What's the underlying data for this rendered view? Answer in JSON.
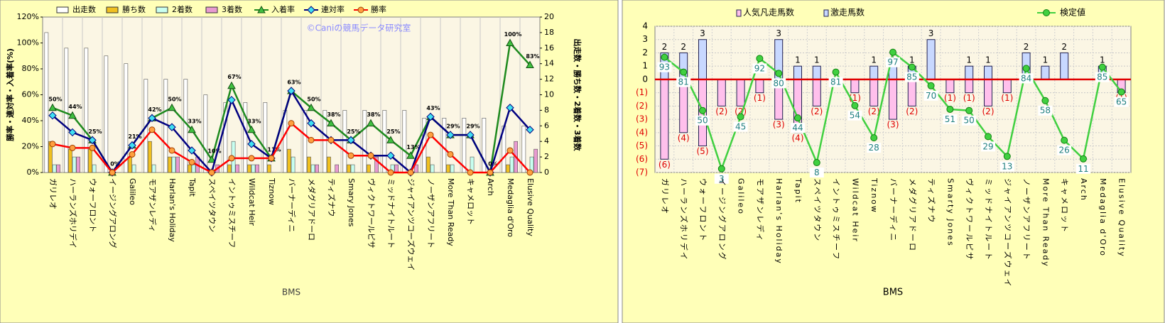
{
  "chart_data": [
    {
      "type": "combo",
      "annotation": "©Caniの競馬データ研究室",
      "xlabel": "BMS",
      "ylabel": "勝率・連対率・入着率(%)",
      "y2label": "出走数・勝ち数・2着数・3着数",
      "categories": [
        "ガリレオ",
        "ハーランズホリデイ",
        "ウォーフロント",
        "イージングアロング",
        "Galileo",
        "モアザンレディ",
        "Harlan's Holiday",
        "Tapit",
        "スペイツタウン",
        "イントゥミスチーフ",
        "Wildcat Heir",
        "Tiznow",
        "バーナーディニ",
        "メダグリアドーロ",
        "ティズナウ",
        "Smary Jones",
        "ヴィクトワールピサ",
        "ミッドナイトルート",
        "ジャイアンツコーズウェイ",
        "ノーザンアフリート",
        "More Than Ready",
        "キャメロット",
        "Arch",
        "Medaglia d'Oro",
        "Elusive Quality"
      ],
      "ylim": [
        0,
        120
      ],
      "yticks": [
        {
          "value": 0,
          "label": "0%"
        },
        {
          "value": 20,
          "label": "20%"
        },
        {
          "value": 40,
          "label": "40%"
        },
        {
          "value": 60,
          "label": "60%"
        },
        {
          "value": 80,
          "label": "80%"
        },
        {
          "value": 100,
          "label": "100%"
        },
        {
          "value": 120,
          "label": "120%"
        }
      ],
      "y2lim": [
        0,
        20
      ],
      "y2ticks": [
        0,
        2,
        4,
        6,
        8,
        10,
        12,
        14,
        16,
        18,
        20
      ],
      "grid": true,
      "legend": "top",
      "series": [
        {
          "name": "出走数",
          "kind": "bar",
          "axis": "y2",
          "color": "#ffffff",
          "values": [
            18,
            16,
            16,
            15,
            14,
            12,
            12,
            12,
            10,
            9,
            9,
            9,
            8,
            8,
            8,
            8,
            8,
            8,
            8,
            7,
            7,
            7,
            7,
            6,
            6
          ]
        },
        {
          "name": "勝ち数",
          "kind": "bar",
          "axis": "y2",
          "color": "#f0c020",
          "values": [
            4,
            3,
            3,
            0,
            2,
            4,
            2,
            1,
            0,
            1,
            1,
            1,
            3,
            2,
            2,
            1,
            1,
            0,
            0,
            2,
            1,
            0,
            0,
            1,
            0
          ]
        },
        {
          "name": "2着数",
          "kind": "bar",
          "axis": "y2",
          "color": "#c8fff0",
          "values": [
            1,
            2,
            1,
            0,
            1,
            1,
            2,
            1,
            0,
            4,
            1,
            0,
            2,
            1,
            0,
            1,
            0,
            1,
            0,
            1,
            1,
            2,
            0,
            2,
            2
          ]
        },
        {
          "name": "3着数",
          "kind": "bar",
          "axis": "y2",
          "color": "#e89ad0",
          "values": [
            1,
            2,
            0,
            0,
            0,
            0,
            2,
            2,
            1,
            1,
            1,
            0,
            0,
            1,
            1,
            0,
            2,
            1,
            1,
            0,
            0,
            0,
            0,
            4,
            3
          ]
        },
        {
          "name": "入着率",
          "kind": "line",
          "marker": "triangle",
          "color": "#1e8a1e",
          "markercolor": "#40c040",
          "values": [
            50,
            44,
            25,
            0,
            21,
            42,
            50,
            33,
            10,
            67,
            33,
            11,
            63,
            50,
            38,
            25,
            38,
            25,
            13,
            43,
            29,
            29,
            0,
            100,
            83
          ],
          "value_labels": [
            "50%",
            "44%",
            "25%",
            "0%",
            "21%",
            "42%",
            "50%",
            "33%",
            "10%",
            "67%",
            "33%",
            "11%",
            "63%",
            "50%",
            "38%",
            "25%",
            "38%",
            "25%",
            "13%",
            "43%",
            "29%",
            "29%",
            "0%",
            "100%",
            "83%"
          ]
        },
        {
          "name": "連対率",
          "kind": "line",
          "marker": "diamond",
          "color": "#000080",
          "markercolor": "#40e0f0",
          "values": [
            44,
            31,
            25,
            0,
            21,
            42,
            35,
            17,
            0,
            56,
            22,
            11,
            63,
            38,
            25,
            25,
            13,
            13,
            0,
            43,
            29,
            29,
            0,
            50,
            33
          ]
        },
        {
          "name": "勝率",
          "kind": "line",
          "marker": "circle",
          "color": "#ff0000",
          "markercolor": "#ffa040",
          "values": [
            22,
            19,
            19,
            0,
            14,
            33,
            17,
            8,
            0,
            11,
            11,
            11,
            38,
            25,
            25,
            13,
            13,
            0,
            0,
            29,
            14,
            0,
            0,
            17,
            0
          ]
        }
      ]
    },
    {
      "type": "diverging",
      "xlabel": "BMS",
      "categories": [
        "ガリレオ",
        "ハーランズホリデイ",
        "ウォーフロント",
        "イージングアロング",
        "Galileo",
        "モアザンレディ",
        "Harlan's Holiday",
        "Tapit",
        "スペイツタウン",
        "イントゥミスチーフ",
        "Wildcat Heir",
        "Tiznow",
        "バーナーディニ",
        "メダグリアドーロ",
        "ティズナウ",
        "Smarty Jones",
        "ヴィクトワールピサ",
        "ミッドナイトルート",
        "ジャイアンツコーズウェイ",
        "ノーザンアフリート",
        "More Than Ready",
        "キャメロット",
        "Arch",
        "Medaglia d'Oro",
        "Elusive Quality"
      ],
      "ylim": [
        -7,
        4
      ],
      "yticks": [
        4,
        3,
        2,
        1,
        0,
        {
          "value": -1,
          "label": "(1)"
        },
        {
          "value": -2,
          "label": "(2)"
        },
        {
          "value": -3,
          "label": "(3)"
        },
        {
          "value": -4,
          "label": "(4)"
        },
        {
          "value": -5,
          "label": "(5)"
        },
        {
          "value": -6,
          "label": "(6)"
        },
        {
          "value": -7,
          "label": "(7)"
        }
      ],
      "y2lim": [
        0,
        118
      ],
      "grid": true,
      "legend": "top",
      "series": [
        {
          "name": "人気凡走馬数",
          "kind": "bar",
          "color": "#ffc0ec",
          "values": [
            -6,
            -4,
            -5,
            -2,
            -2,
            -1,
            -3,
            -4,
            -2,
            0,
            -1,
            -2,
            -3,
            -2,
            0,
            -1,
            -1,
            -2,
            -1,
            0,
            0,
            0,
            0,
            0,
            -1
          ],
          "value_labels": [
            "(6)",
            "(4)",
            "(5)",
            "(2)",
            "(2)",
            "(1)",
            "(3)",
            "(4)",
            "(2)",
            null,
            "(1)",
            "(2)",
            "(3)",
            "(2)",
            null,
            "(1)",
            "(1)",
            "(2)",
            "(1)",
            null,
            null,
            null,
            null,
            null,
            "(1)"
          ]
        },
        {
          "name": "激走馬数",
          "kind": "bar",
          "color": "#c8d8ff",
          "values": [
            2,
            2,
            3,
            0,
            0,
            0,
            3,
            1,
            1,
            0,
            0,
            1,
            1,
            1,
            3,
            0,
            1,
            1,
            0,
            2,
            1,
            2,
            0,
            1,
            0
          ],
          "value_labels": [
            "2",
            "2",
            "3",
            null,
            null,
            null,
            "3",
            "1",
            "1",
            null,
            null,
            "1",
            "1",
            "1",
            "3",
            null,
            "1",
            "1",
            null,
            "2",
            "1",
            "2",
            null,
            "1",
            null
          ]
        },
        {
          "name": "検定値",
          "kind": "line",
          "axis": "y2",
          "color": "#40d040",
          "values": [
            93,
            81,
            50,
            3,
            45,
            92,
            80,
            44,
            8,
            81,
            54,
            28,
            97,
            85,
            70,
            51,
            50,
            29,
            13,
            84,
            58,
            26,
            11,
            85,
            65
          ]
        }
      ]
    }
  ]
}
